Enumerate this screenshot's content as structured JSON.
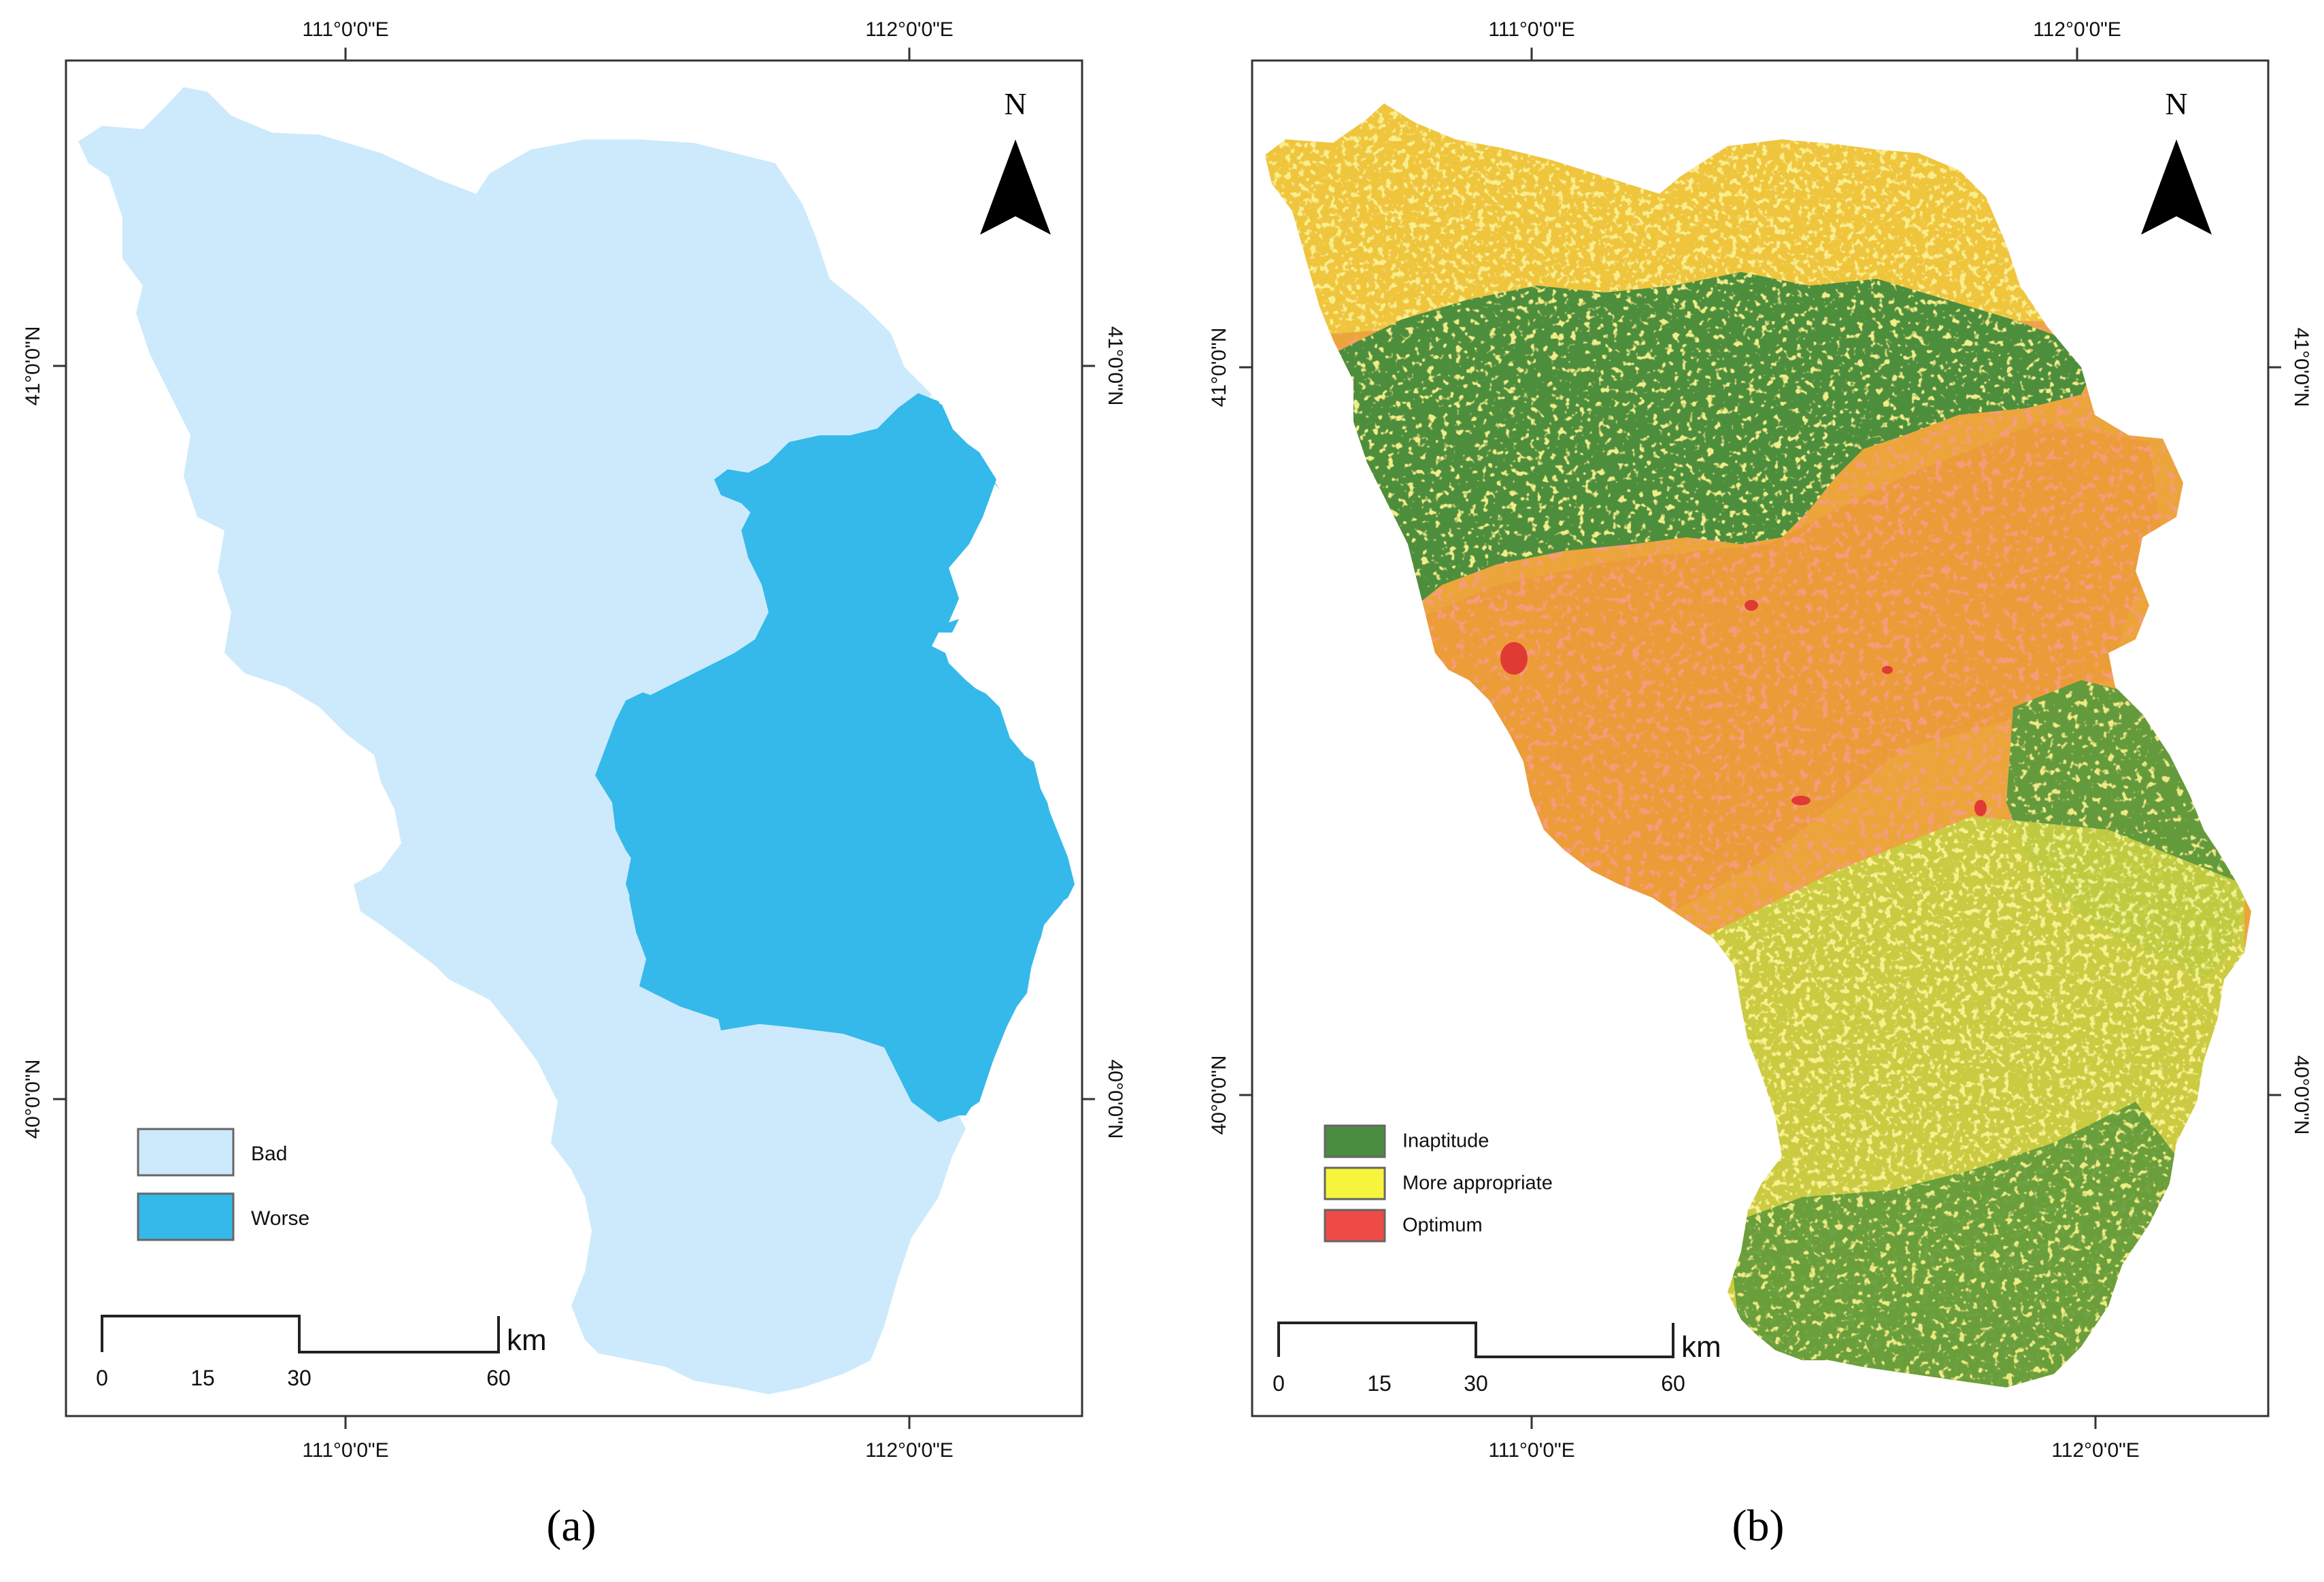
{
  "panel_a": {
    "caption": "(a)",
    "top_ticks": [
      "111°0'0\"E",
      "112°0'0\"E"
    ],
    "bottom_ticks": [
      "111°0'0\"E",
      "112°0'0\"E"
    ],
    "left_ticks": [
      "41°0'0\"N",
      "40°0'0\"N"
    ],
    "right_ticks": [
      "41°0'0\"N",
      "40°0'0\"N"
    ],
    "north_label": "N",
    "legend": [
      {
        "label": "Bad",
        "color": "#cdeafc"
      },
      {
        "label": "Worse",
        "color": "#35b9ea"
      }
    ],
    "scale_bar": {
      "labels": [
        "0",
        "15",
        "30",
        "60"
      ],
      "unit": "km"
    }
  },
  "panel_b": {
    "caption": "(b)",
    "top_ticks": [
      "111°0'0\"E",
      "112°0'0\"E"
    ],
    "bottom_ticks": [
      "111°0'0\"E",
      "112°0'0\"E"
    ],
    "left_ticks": [
      "41°0'0\"N",
      "40°0'0\"N"
    ],
    "right_ticks": [
      "41°0'0\"N",
      "40°0'0\"N"
    ],
    "north_label": "N",
    "legend": [
      {
        "label": "Inaptitude",
        "color": "#4a8c3f"
      },
      {
        "label": "More appropriate",
        "color": "#f6f53c"
      },
      {
        "label": "Optimum",
        "color": "#ee4b46"
      }
    ],
    "scale_bar": {
      "labels": [
        "0",
        "15",
        "30",
        "60"
      ],
      "unit": "km"
    }
  }
}
